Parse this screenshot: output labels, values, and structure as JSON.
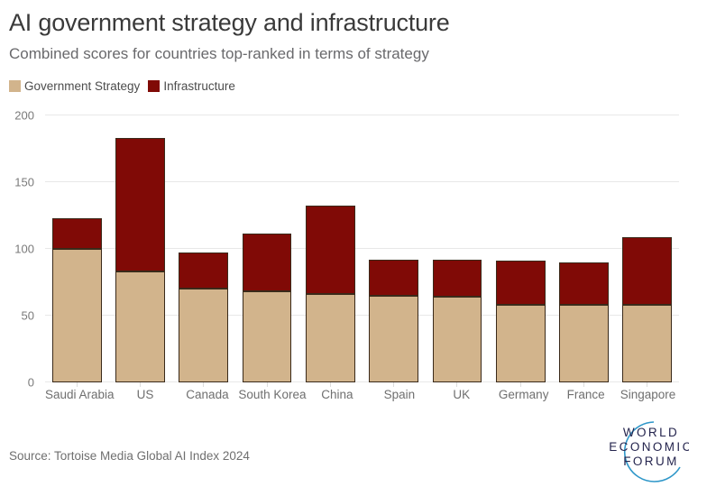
{
  "header": {
    "title": "AI government strategy and infrastructure",
    "subtitle": "Combined scores for countries top-ranked in terms of strategy"
  },
  "legend": {
    "items": [
      {
        "label": "Government Strategy",
        "color": "#d2b48c"
      },
      {
        "label": "Infrastructure",
        "color": "#800a06"
      }
    ]
  },
  "chart_data": {
    "type": "bar",
    "stacked": true,
    "title": "AI government strategy and infrastructure",
    "subtitle": "Combined scores for countries top-ranked in terms of strategy",
    "categories": [
      "Saudi Arabia",
      "US",
      "Canada",
      "South Korea",
      "China",
      "Spain",
      "UK",
      "Germany",
      "France",
      "Singapore"
    ],
    "series": [
      {
        "name": "Government Strategy",
        "color": "#d2b48c",
        "values": [
          100,
          83,
          70,
          68,
          66,
          65,
          64,
          58,
          58,
          58
        ]
      },
      {
        "name": "Infrastructure",
        "color": "#800a06",
        "values": [
          23,
          100,
          27,
          43,
          66,
          27,
          28,
          33,
          32,
          51
        ]
      }
    ],
    "xlabel": "",
    "ylabel": "",
    "ylim": [
      0,
      200
    ],
    "yticks": [
      0,
      50,
      100,
      150,
      200
    ],
    "grid": true,
    "legend_position": "top-left",
    "bar_outline_color": "#3a2a1a"
  },
  "footer": {
    "source": "Source: Tortoise Media Global AI Index 2024",
    "logo": {
      "lines": [
        "WORLD",
        "ECONOMIC",
        "FORUM"
      ],
      "text_color": "#25254e",
      "arc_color": "#2f97c9"
    }
  }
}
